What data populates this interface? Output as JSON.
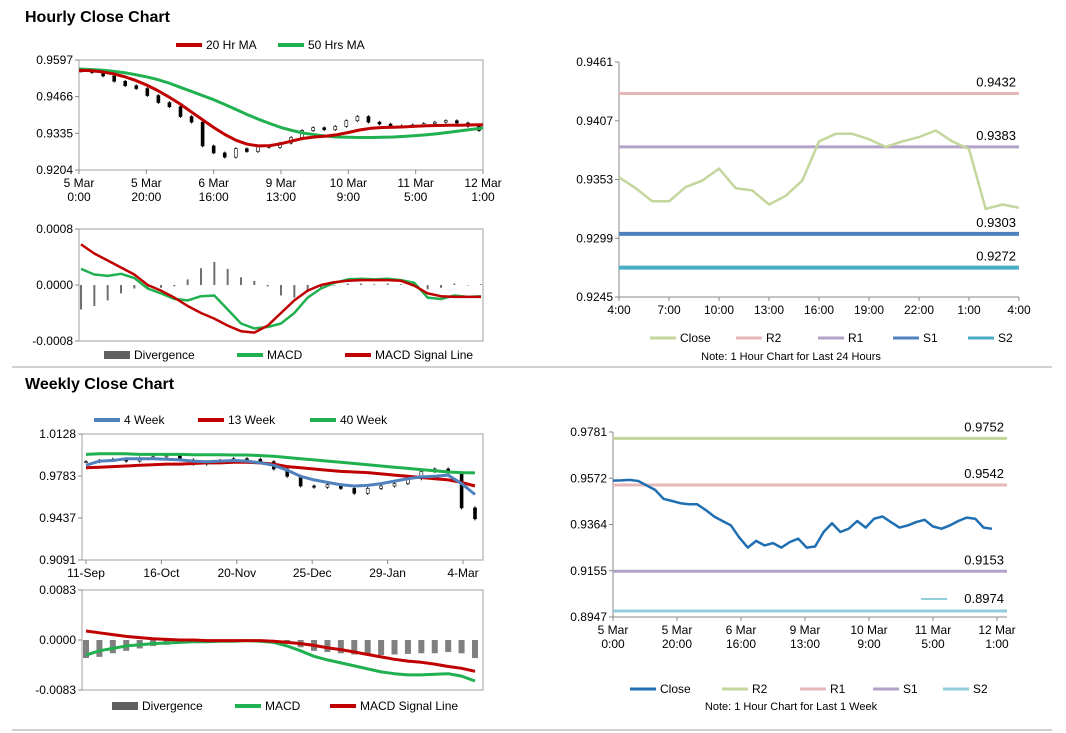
{
  "hourly": {
    "title": "Hourly Close Chart",
    "price": {
      "type": "line",
      "y_ticks": [
        "0.9597",
        "0.9466",
        "0.9335",
        "0.9204"
      ],
      "ylim": [
        0.9204,
        0.9597
      ],
      "x_ticks": [
        [
          "5 Mar",
          "0:00"
        ],
        [
          "5 Mar",
          "20:00"
        ],
        [
          "6 Mar",
          "16:00"
        ],
        [
          "9 Mar",
          "13:00"
        ],
        [
          "10 Mar",
          "9:00"
        ],
        [
          "11 Mar",
          "5:00"
        ],
        [
          "12 Mar",
          "1:00"
        ]
      ],
      "legend": [
        {
          "name": "20 Hr MA",
          "color": "#c00000"
        },
        {
          "name": "50 Hrs MA",
          "color": "#20b050"
        }
      ],
      "ma20": [
        0.956,
        0.9559,
        0.9555,
        0.9548,
        0.9538,
        0.9525,
        0.9508,
        0.9488,
        0.9465,
        0.944,
        0.9412,
        0.9384,
        0.9356,
        0.9331,
        0.931,
        0.9296,
        0.929,
        0.9291,
        0.9298,
        0.9308,
        0.9317,
        0.9322,
        0.9325,
        0.933,
        0.9338,
        0.9347,
        0.9353,
        0.9356,
        0.9357,
        0.9358,
        0.936,
        0.9362,
        0.9363,
        0.9364,
        0.9364,
        0.9365,
        0.9366
      ],
      "ma50": [
        0.9565,
        0.9563,
        0.9561,
        0.9557,
        0.9552,
        0.9545,
        0.9537,
        0.9527,
        0.9515,
        0.95,
        0.9485,
        0.947,
        0.9455,
        0.9438,
        0.942,
        0.9402,
        0.9385,
        0.937,
        0.9356,
        0.9345,
        0.9336,
        0.933,
        0.9325,
        0.9322,
        0.9321,
        0.932,
        0.932,
        0.9321,
        0.9322,
        0.9324,
        0.9327,
        0.933,
        0.9334,
        0.9339,
        0.9344,
        0.9349,
        0.9354
      ],
      "close": [
        0.9558,
        0.9552,
        0.954,
        0.9521,
        0.9505,
        0.9495,
        0.947,
        0.9445,
        0.943,
        0.9395,
        0.9375,
        0.929,
        0.9265,
        0.925,
        0.928,
        0.927,
        0.929,
        0.9285,
        0.93,
        0.932,
        0.9345,
        0.9355,
        0.9348,
        0.936,
        0.938,
        0.9395,
        0.9375,
        0.9368,
        0.9362,
        0.936,
        0.9365,
        0.937,
        0.9375,
        0.938,
        0.9372,
        0.936,
        0.9345
      ]
    },
    "macd": {
      "y_ticks": [
        "0.0008",
        "0.0000",
        "-0.0008"
      ],
      "ylim": [
        -0.0008,
        0.0008
      ],
      "legend": [
        {
          "name": "Divergence",
          "color": "#606060"
        },
        {
          "name": "MACD",
          "color": "#20b050"
        },
        {
          "name": "MACD Signal Line",
          "color": "#c00000"
        }
      ],
      "macd": [
        0.00023,
        0.00015,
        0.00013,
        0.00016,
        0.0001,
        -5e-05,
        -0.00012,
        -0.0002,
        -0.00022,
        -0.00016,
        -0.00015,
        -0.00035,
        -0.00055,
        -0.00062,
        -0.0006,
        -0.00055,
        -0.0004,
        -0.00018,
        -5e-05,
        3e-05,
        8e-05,
        9e-05,
        8e-05,
        9e-05,
        7e-05,
        3e-05,
        -0.00018,
        -0.0002,
        -0.00015,
        -0.00017,
        -0.00016
      ],
      "signal": [
        0.00058,
        0.00045,
        0.00035,
        0.00025,
        0.00015,
        0.0,
        -8e-05,
        -0.00018,
        -0.0003,
        -0.0004,
        -0.00048,
        -0.00058,
        -0.00066,
        -0.00068,
        -0.00058,
        -0.0004,
        -0.00022,
        -8e-05,
        0.0,
        4e-05,
        6e-05,
        7e-05,
        7e-05,
        7e-05,
        6e-05,
        -1e-05,
        -0.00012,
        -0.00016,
        -0.00017,
        -0.00017,
        -0.00017
      ],
      "divergence": [
        -0.00035,
        -0.0003,
        -0.00022,
        -0.00012,
        -5e-05,
        -5e-05,
        -4e-05,
        -2e-05,
        8e-05,
        0.00024,
        0.00033,
        0.00023,
        0.00011,
        6e-05,
        -2e-05,
        -0.00015,
        -0.00018,
        -0.0001,
        -5e-05,
        -1e-05,
        2e-05,
        2e-05,
        1e-05,
        2e-05,
        1e-05,
        4e-05,
        -6e-05,
        -4e-05,
        2e-05,
        0.0,
        1e-05
      ]
    },
    "intraday": {
      "type": "line",
      "y_ticks": [
        "0.9461",
        "0.9407",
        "0.9353",
        "0.9299",
        "0.9245"
      ],
      "ylim": [
        0.9245,
        0.9461
      ],
      "x_ticks": [
        "4:00",
        "7:00",
        "10:00",
        "13:00",
        "16:00",
        "19:00",
        "22:00",
        "1:00",
        "4:00"
      ],
      "levels": [
        {
          "name": "R2",
          "value": 0.9432,
          "label": "0.9432",
          "color": "#e6b8b7"
        },
        {
          "name": "R1",
          "value": 0.9383,
          "label": "0.9383",
          "color": "#b3a2c7"
        },
        {
          "name": "S1",
          "value": 0.9303,
          "label": "0.9303",
          "color": "#4f81bd"
        },
        {
          "name": "S2",
          "value": 0.9272,
          "label": "0.9272",
          "color": "#4bacc6"
        }
      ],
      "close": [
        0.9355,
        0.9345,
        0.9333,
        0.9333,
        0.9346,
        0.9352,
        0.9363,
        0.9345,
        0.9343,
        0.933,
        0.9338,
        0.9352,
        0.9388,
        0.9395,
        0.9395,
        0.939,
        0.9383,
        0.9388,
        0.9392,
        0.9398,
        0.9388,
        0.9381,
        0.9326,
        0.933,
        0.9327
      ],
      "close_color": "#c3d69b",
      "legend": [
        "Close",
        "R2",
        "R1",
        "S1",
        "S2"
      ],
      "note": "Note: 1 Hour Chart for Last 24 Hours"
    }
  },
  "weekly": {
    "title": "Weekly Close Chart",
    "price": {
      "type": "line",
      "y_ticks": [
        "1.0128",
        "0.9783",
        "0.9437",
        "0.9091"
      ],
      "ylim": [
        0.9091,
        1.0128
      ],
      "x_ticks": [
        "11-Sep",
        "16-Oct",
        "20-Nov",
        "25-Dec",
        "29-Jan",
        "4-Mar"
      ],
      "legend": [
        {
          "name": "4 Week",
          "color": "#4f81bd"
        },
        {
          "name": "13 Week",
          "color": "#c00000"
        },
        {
          "name": "40 Week",
          "color": "#20b050"
        }
      ],
      "wk4": [
        0.987,
        0.9905,
        0.991,
        0.9925,
        0.9925,
        0.9925,
        0.992,
        0.9915,
        0.9905,
        0.99,
        0.9905,
        0.991,
        0.9905,
        0.989,
        0.987,
        0.983,
        0.978,
        0.975,
        0.973,
        0.971,
        0.97,
        0.9705,
        0.972,
        0.974,
        0.976,
        0.9775,
        0.978,
        0.979,
        0.972,
        0.963
      ],
      "wk13": [
        0.985,
        0.9855,
        0.986,
        0.9865,
        0.987,
        0.9875,
        0.988,
        0.988,
        0.9885,
        0.989,
        0.989,
        0.9895,
        0.9895,
        0.989,
        0.988,
        0.986,
        0.985,
        0.984,
        0.983,
        0.982,
        0.9815,
        0.981,
        0.98,
        0.979,
        0.978,
        0.977,
        0.976,
        0.975,
        0.973,
        0.97
      ],
      "wk40": [
        0.996,
        0.9965,
        0.9965,
        0.9965,
        0.996,
        0.996,
        0.996,
        0.996,
        0.9958,
        0.9958,
        0.9958,
        0.9955,
        0.9955,
        0.995,
        0.9945,
        0.9935,
        0.9925,
        0.9915,
        0.9905,
        0.9895,
        0.9885,
        0.9875,
        0.9865,
        0.9855,
        0.9845,
        0.9835,
        0.9825,
        0.9815,
        0.981,
        0.9808
      ],
      "close": [
        0.99,
        0.991,
        0.992,
        0.9905,
        0.993,
        0.994,
        0.995,
        0.9915,
        0.988,
        0.99,
        0.991,
        0.9925,
        0.992,
        0.99,
        0.984,
        0.978,
        0.97,
        0.969,
        0.971,
        0.968,
        0.964,
        0.968,
        0.97,
        0.972,
        0.976,
        0.982,
        0.984,
        0.981,
        0.952,
        0.943
      ]
    },
    "macd": {
      "y_ticks": [
        "0.0083",
        "0.0000",
        "-0.0083"
      ],
      "ylim": [
        -0.0083,
        0.0083
      ],
      "legend": [
        {
          "name": "Divergence",
          "color": "#606060"
        },
        {
          "name": "MACD",
          "color": "#20b050"
        },
        {
          "name": "MACD Signal Line",
          "color": "#c00000"
        }
      ],
      "macd": [
        -0.0025,
        -0.0018,
        -0.0014,
        -0.001,
        -0.0008,
        -0.0006,
        -0.0005,
        -0.0004,
        -0.0003,
        -0.0003,
        -0.0002,
        -0.0002,
        -0.0001,
        -0.0002,
        -0.0004,
        -0.001,
        -0.0018,
        -0.0027,
        -0.0033,
        -0.0038,
        -0.0043,
        -0.0048,
        -0.0053,
        -0.0056,
        -0.0058,
        -0.0058,
        -0.0057,
        -0.0056,
        -0.006,
        -0.0068
      ],
      "signal": [
        0.0015,
        0.0012,
        0.0009,
        0.0006,
        0.0004,
        0.0002,
        0.0001,
        0.0,
        0.0,
        -0.0001,
        -0.0001,
        -0.0001,
        -0.0001,
        -0.0001,
        -0.0002,
        -0.0004,
        -0.0006,
        -0.0009,
        -0.0013,
        -0.0016,
        -0.002,
        -0.0024,
        -0.0028,
        -0.0032,
        -0.0035,
        -0.0037,
        -0.004,
        -0.0044,
        -0.0047,
        -0.0052
      ],
      "divergence": [
        -0.003,
        -0.0028,
        -0.0022,
        -0.0018,
        -0.0014,
        -0.001,
        -0.0008,
        -0.0006,
        -0.0004,
        -0.0003,
        -0.0002,
        -0.0002,
        -0.0001,
        -0.0002,
        -0.0003,
        -0.0006,
        -0.0012,
        -0.0018,
        -0.002,
        -0.0022,
        -0.0024,
        -0.0025,
        -0.0025,
        -0.0024,
        -0.0023,
        -0.0022,
        -0.0022,
        -0.002,
        -0.0022,
        -0.003
      ]
    },
    "weekly_detail": {
      "type": "line",
      "y_ticks": [
        "0.9781",
        "0.9572",
        "0.9364",
        "0.9155",
        "0.8947"
      ],
      "ylim": [
        0.8947,
        0.9781
      ],
      "x_ticks": [
        [
          "5 Mar",
          "0:00"
        ],
        [
          "5 Mar",
          "20:00"
        ],
        [
          "6 Mar",
          "16:00"
        ],
        [
          "9 Mar",
          "13:00"
        ],
        [
          "10 Mar",
          "9:00"
        ],
        [
          "11 Mar",
          "5:00"
        ],
        [
          "12 Mar",
          "1:00"
        ]
      ],
      "levels": [
        {
          "name": "R2",
          "value": 0.9752,
          "label": "0.9752",
          "color": "#c3d69b"
        },
        {
          "name": "R1",
          "value": 0.9542,
          "label": "0.9542",
          "color": "#e6b8b7"
        },
        {
          "name": "S1",
          "value": 0.9153,
          "label": "0.9153",
          "color": "#b3a2c7"
        },
        {
          "name": "S2",
          "value": 0.8974,
          "label": "0.8974",
          "color": "#92cddc"
        }
      ],
      "close": [
        0.9562,
        0.9563,
        0.9565,
        0.956,
        0.954,
        0.952,
        0.948,
        0.947,
        0.946,
        0.9455,
        0.9455,
        0.943,
        0.94,
        0.938,
        0.936,
        0.9305,
        0.926,
        0.929,
        0.927,
        0.928,
        0.926,
        0.9285,
        0.93,
        0.926,
        0.9265,
        0.933,
        0.937,
        0.933,
        0.9345,
        0.938,
        0.935,
        0.939,
        0.94,
        0.9375,
        0.935,
        0.936,
        0.9375,
        0.9385,
        0.9355,
        0.9345,
        0.936,
        0.938,
        0.9395,
        0.939,
        0.935,
        0.9345
      ],
      "close_color": "#1f6fb2",
      "legend": [
        "Close",
        "R2",
        "R1",
        "S1",
        "S2"
      ],
      "note": "Note: 1 Hour Chart for Last 1 Week"
    }
  }
}
